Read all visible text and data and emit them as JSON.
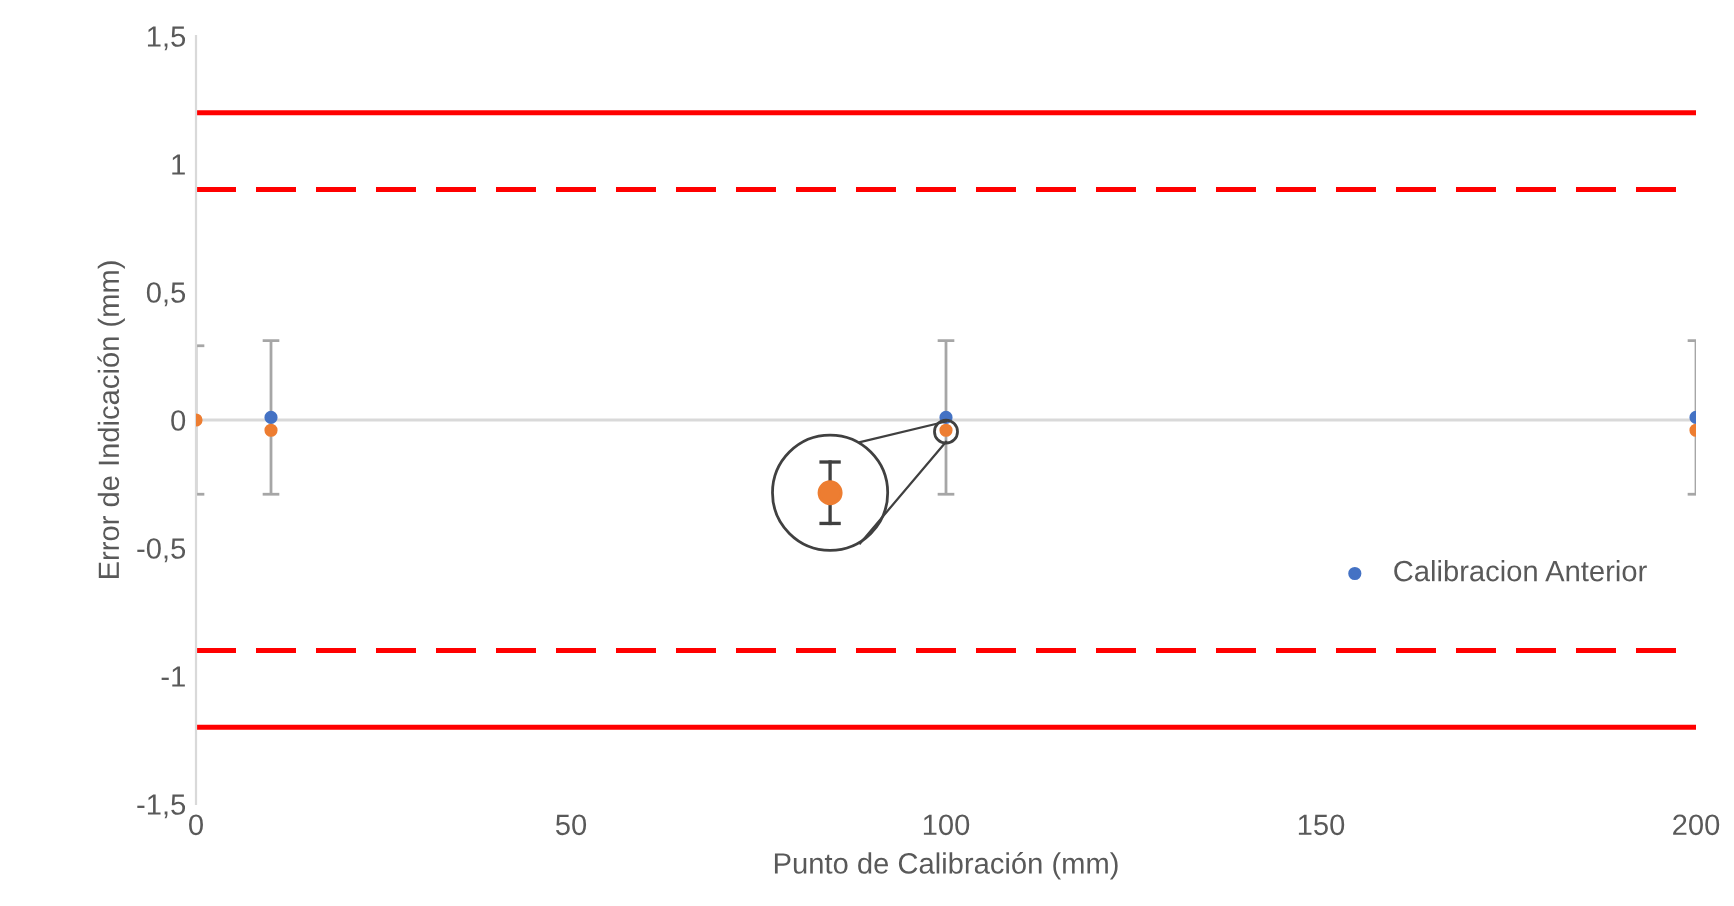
{
  "chart_data": {
    "type": "scatter",
    "xlabel": "Punto de Calibración (mm)",
    "ylabel": "Error de Indicación (mm)",
    "xlim": [
      0,
      200
    ],
    "xticks": [
      0,
      50,
      100,
      150,
      200
    ],
    "ylim": [
      -1.5,
      1.5
    ],
    "yticks": [
      {
        "value": -1.5,
        "label": "-1,5"
      },
      {
        "value": -1,
        "label": "-1"
      },
      {
        "value": -0.5,
        "label": "-0,5"
      },
      {
        "value": 0,
        "label": "0"
      },
      {
        "value": 0.5,
        "label": "0,5"
      },
      {
        "value": 1,
        "label": "1"
      },
      {
        "value": 1.5,
        "label": "1,5"
      }
    ],
    "grid": false,
    "legend": "right",
    "marker": "circle",
    "series": [
      {
        "name": "Calibracion Anterior",
        "color": "#4472c4",
        "x": [
          10,
          100,
          200
        ],
        "values": [
          0.01,
          0.01,
          0.01
        ],
        "errors": [
          0.3,
          0.3,
          0.3
        ]
      },
      {
        "color": "#ed7d31",
        "x": [
          0,
          10,
          100,
          200
        ],
        "values": [
          0,
          -0.04,
          -0.04,
          -0.04
        ],
        "errors": [
          0.29,
          null,
          null,
          null
        ]
      }
    ],
    "ref_lines": [
      {
        "axis": "y",
        "value": 0,
        "color": "#d9d9d9",
        "line_style": "solid"
      },
      {
        "axis": "y",
        "value": 1.2,
        "color": "#ff0000",
        "line_style": "solid"
      },
      {
        "axis": "y",
        "value": 0.9,
        "color": "#ff0000",
        "line_style": "dashed"
      },
      {
        "axis": "y",
        "value": -0.9,
        "color": "#ff0000",
        "line_style": "dashed"
      },
      {
        "axis": "y",
        "value": -1.2,
        "color": "#ff0000",
        "line_style": "solid"
      }
    ]
  }
}
